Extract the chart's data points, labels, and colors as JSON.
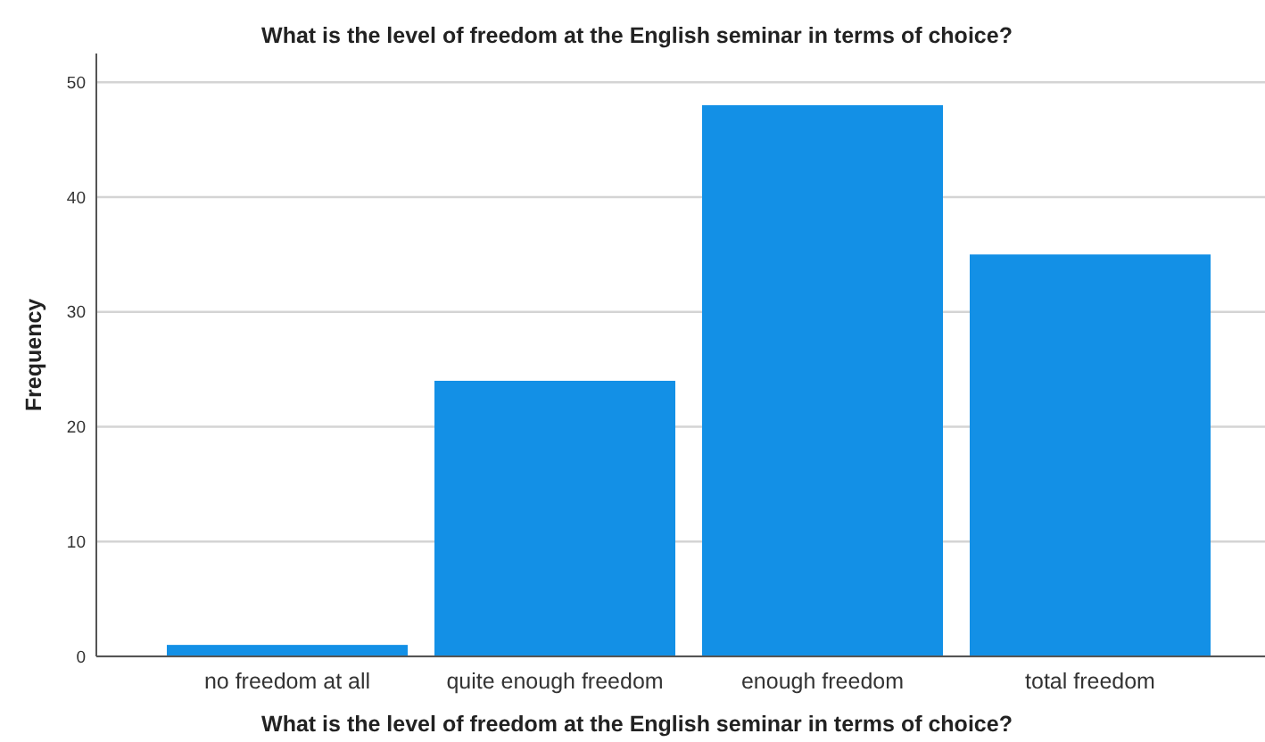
{
  "chart_data": {
    "type": "bar",
    "title": "What is the level of freedom at the English seminar in terms of choice?",
    "xlabel": "What is the level of freedom at the English seminar in terms of choice?",
    "ylabel": "Frequency",
    "categories": [
      "no freedom at all",
      "quite enough freedom",
      "enough freedom",
      "total freedom"
    ],
    "values": [
      1,
      24,
      48,
      35
    ],
    "color": "#1390e6",
    "ylim": [
      0,
      52.5
    ],
    "yticks": [
      0,
      10,
      20,
      30,
      40,
      50
    ],
    "grid": "y"
  }
}
